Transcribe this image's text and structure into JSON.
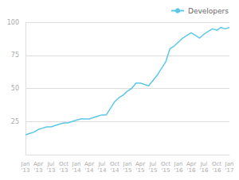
{
  "chart_data": {
    "type": "line",
    "categories": [
      "Jan\n'13",
      null,
      null,
      "Apr\n'13",
      null,
      null,
      "Jul\n'13",
      null,
      null,
      "Oct\n'13",
      null,
      null,
      "Jan\n'14",
      null,
      null,
      "Apr\n'14",
      null,
      null,
      "Jul\n'14",
      null,
      null,
      "Oct\n'14",
      null,
      null,
      "Jan\n'15",
      null,
      null,
      "Apr\n'15",
      null,
      null,
      "Jul\n'15",
      null,
      null,
      "Oct\n'15",
      null,
      null,
      "Jan\n'16",
      null,
      null,
      "Apr\n'16",
      null,
      null,
      "Jul\n'16",
      null,
      null,
      "Oct\n'16",
      null,
      null,
      "Jan\n'17"
    ],
    "series": [
      {
        "name": "Developers",
        "color": "#5bc8e8",
        "values": [
          15,
          16,
          17,
          19,
          20,
          21,
          21,
          22,
          23,
          24,
          24,
          25,
          26,
          27,
          27,
          27,
          28,
          29,
          30,
          30,
          35,
          40,
          43,
          45,
          48,
          50,
          54,
          54,
          53,
          52,
          56,
          60,
          65,
          70,
          80,
          82,
          85,
          88,
          90,
          92,
          90,
          88,
          91,
          93,
          95,
          94,
          96,
          95,
          96
        ]
      }
    ],
    "ylim": [
      0,
      100
    ],
    "yticks": [
      25,
      50,
      75,
      100
    ],
    "grid": true,
    "legend": "upper right"
  }
}
